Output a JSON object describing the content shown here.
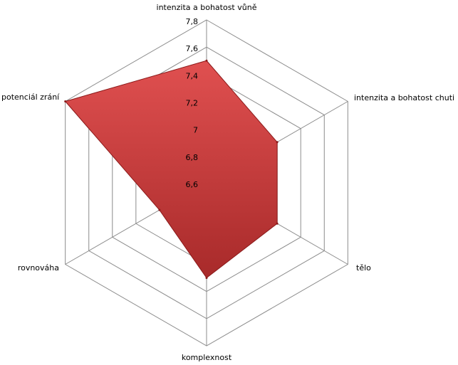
{
  "chart_data": {
    "type": "radar",
    "categories": [
      "intenzita a bohatost vůně",
      "intenzita a bohatost chuti",
      "tělo",
      "komplexnost",
      "rovnováha",
      "potenciál zrání"
    ],
    "values": [
      7.5,
      7.2,
      7.2,
      7.3,
      7.0,
      7.8
    ],
    "color": "#c0392b",
    "rlim": [
      6.6,
      7.8
    ],
    "rticks": [
      {
        "value": 6.6,
        "label": "6,6"
      },
      {
        "value": 6.8,
        "label": "6,8"
      },
      {
        "value": 7,
        "label": "7"
      },
      {
        "value": 7.2,
        "label": "7,2"
      },
      {
        "value": 7.4,
        "label": "7,4"
      },
      {
        "value": 7.6,
        "label": "7,6"
      },
      {
        "value": 7.8,
        "label": "7,8"
      }
    ],
    "grid": true
  }
}
